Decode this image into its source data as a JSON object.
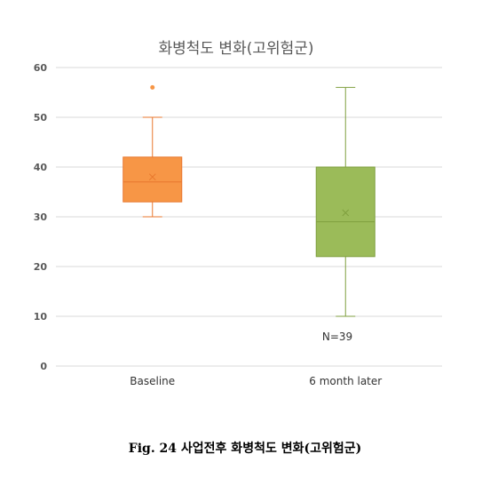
{
  "chart_data": {
    "type": "box",
    "title": "화병척도 변화(고위험군)",
    "categories": [
      "Baseline",
      "6 month later"
    ],
    "ylim": [
      0,
      60
    ],
    "yticks": [
      0,
      10,
      20,
      30,
      40,
      50,
      60
    ],
    "grid": true,
    "series": [
      {
        "category": "Baseline",
        "min": 30,
        "q1": 33,
        "median": 37,
        "q3": 42,
        "max": 50,
        "mean": 38,
        "outliers": [
          56
        ],
        "color": "#F79646"
      },
      {
        "category": "6 month later",
        "min": 10,
        "q1": 22,
        "median": 29,
        "q3": 40,
        "max": 56,
        "mean": 30.8,
        "outliers": [],
        "color": "#9BBB59"
      }
    ],
    "annotation": "N=39"
  },
  "caption": "Fig. 24 사업전후 화병척도 변화(고위험군)"
}
